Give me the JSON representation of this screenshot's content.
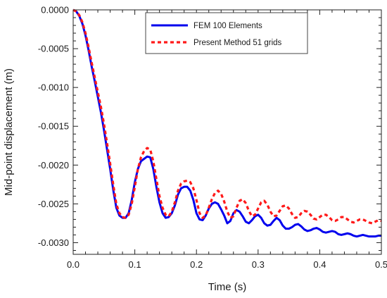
{
  "chart_data": {
    "type": "line",
    "title": "",
    "xlabel": "Time (s)",
    "ylabel": "Mid-point displacement (m)",
    "xlim": [
      0.0,
      0.5
    ],
    "ylim": [
      -0.00315,
      0.0
    ],
    "xticks": [
      0.0,
      0.1,
      0.2,
      0.3,
      0.4,
      0.5
    ],
    "xtick_labels": [
      "0.0",
      "0.1",
      "0.2",
      "0.3",
      "0.4",
      "0.5"
    ],
    "yticks": [
      0.0,
      -0.0005,
      -0.001,
      -0.0015,
      -0.002,
      -0.0025,
      -0.003
    ],
    "ytick_labels": [
      "0.0000",
      "-0.0005",
      "-0.0010",
      "-0.0015",
      "-0.0020",
      "-0.0025",
      "-0.0030"
    ],
    "grid": false,
    "legend_position": "top-center",
    "series": [
      {
        "name": "FEM 100 Elements",
        "color": "#0000ee",
        "style": "solid",
        "x": [
          0.0,
          0.005,
          0.01,
          0.015,
          0.02,
          0.025,
          0.03,
          0.035,
          0.04,
          0.045,
          0.05,
          0.055,
          0.06,
          0.065,
          0.07,
          0.075,
          0.08,
          0.085,
          0.09,
          0.095,
          0.1,
          0.105,
          0.11,
          0.115,
          0.12,
          0.125,
          0.13,
          0.135,
          0.14,
          0.145,
          0.15,
          0.155,
          0.16,
          0.165,
          0.17,
          0.175,
          0.18,
          0.185,
          0.19,
          0.195,
          0.2,
          0.205,
          0.21,
          0.215,
          0.22,
          0.225,
          0.23,
          0.235,
          0.24,
          0.245,
          0.25,
          0.255,
          0.26,
          0.265,
          0.27,
          0.275,
          0.28,
          0.285,
          0.29,
          0.295,
          0.3,
          0.305,
          0.31,
          0.315,
          0.32,
          0.325,
          0.33,
          0.335,
          0.34,
          0.345,
          0.35,
          0.355,
          0.36,
          0.365,
          0.37,
          0.375,
          0.38,
          0.385,
          0.39,
          0.395,
          0.4,
          0.405,
          0.41,
          0.415,
          0.42,
          0.425,
          0.43,
          0.435,
          0.44,
          0.445,
          0.45,
          0.455,
          0.46,
          0.465,
          0.47,
          0.475,
          0.48,
          0.485,
          0.49,
          0.495,
          0.5
        ],
        "y": [
          0.0,
          -2e-05,
          -8e-05,
          -0.00018,
          -0.00033,
          -0.00052,
          -0.00073,
          -0.00092,
          -0.00112,
          -0.00132,
          -0.00155,
          -0.0018,
          -0.00205,
          -0.00232,
          -0.00255,
          -0.00265,
          -0.00268,
          -0.00268,
          -0.00262,
          -0.00245,
          -0.00222,
          -0.00205,
          -0.00195,
          -0.00192,
          -0.00189,
          -0.0019,
          -0.00205,
          -0.00228,
          -0.00248,
          -0.00262,
          -0.00268,
          -0.00267,
          -0.00262,
          -0.00252,
          -0.00238,
          -0.0023,
          -0.00228,
          -0.00228,
          -0.00233,
          -0.00245,
          -0.00262,
          -0.0027,
          -0.00271,
          -0.00265,
          -0.00256,
          -0.0025,
          -0.00248,
          -0.0025,
          -0.00257,
          -0.00265,
          -0.00275,
          -0.00272,
          -0.00262,
          -0.00258,
          -0.0026,
          -0.00266,
          -0.00273,
          -0.00275,
          -0.00271,
          -0.00266,
          -0.00264,
          -0.00268,
          -0.00275,
          -0.00278,
          -0.00277,
          -0.00272,
          -0.00268,
          -0.00271,
          -0.00278,
          -0.00282,
          -0.00282,
          -0.0028,
          -0.00277,
          -0.00276,
          -0.00279,
          -0.00283,
          -0.00285,
          -0.00284,
          -0.00282,
          -0.00281,
          -0.00283,
          -0.00286,
          -0.00287,
          -0.00286,
          -0.00285,
          -0.00286,
          -0.00289,
          -0.0029,
          -0.00289,
          -0.00288,
          -0.00289,
          -0.00291,
          -0.00292,
          -0.00291,
          -0.0029,
          -0.00291,
          -0.00292,
          -0.00292,
          -0.00292,
          -0.00291,
          -0.00291
        ]
      },
      {
        "name": "Present Method 51 grids",
        "color": "#ff1a1a",
        "style": "dashed",
        "x": [
          0.0,
          0.005,
          0.01,
          0.015,
          0.02,
          0.025,
          0.03,
          0.035,
          0.04,
          0.045,
          0.05,
          0.055,
          0.06,
          0.065,
          0.07,
          0.075,
          0.08,
          0.085,
          0.09,
          0.095,
          0.1,
          0.105,
          0.11,
          0.115,
          0.12,
          0.125,
          0.13,
          0.135,
          0.14,
          0.145,
          0.15,
          0.155,
          0.16,
          0.165,
          0.17,
          0.175,
          0.18,
          0.185,
          0.19,
          0.195,
          0.2,
          0.205,
          0.21,
          0.215,
          0.22,
          0.225,
          0.23,
          0.235,
          0.24,
          0.245,
          0.25,
          0.255,
          0.26,
          0.265,
          0.27,
          0.275,
          0.28,
          0.285,
          0.29,
          0.295,
          0.3,
          0.305,
          0.31,
          0.315,
          0.32,
          0.325,
          0.33,
          0.335,
          0.34,
          0.345,
          0.35,
          0.355,
          0.36,
          0.365,
          0.37,
          0.375,
          0.38,
          0.385,
          0.39,
          0.395,
          0.4,
          0.405,
          0.41,
          0.415,
          0.42,
          0.425,
          0.43,
          0.435,
          0.44,
          0.445,
          0.45,
          0.455,
          0.46,
          0.465,
          0.47,
          0.475,
          0.48,
          0.485,
          0.49,
          0.495,
          0.5
        ],
        "y": [
          0.0,
          -2e-05,
          -7e-05,
          -0.00016,
          -0.0003,
          -0.00048,
          -0.00068,
          -0.00087,
          -0.00106,
          -0.00125,
          -0.00147,
          -0.00172,
          -0.00198,
          -0.00225,
          -0.0025,
          -0.00262,
          -0.00267,
          -0.00268,
          -0.00264,
          -0.0025,
          -0.00228,
          -0.00205,
          -0.0019,
          -0.00182,
          -0.00178,
          -0.0018,
          -0.00195,
          -0.00218,
          -0.0024,
          -0.00255,
          -0.00264,
          -0.00266,
          -0.0026,
          -0.00248,
          -0.00233,
          -0.00224,
          -0.00221,
          -0.0022,
          -0.00222,
          -0.0023,
          -0.00245,
          -0.00262,
          -0.00268,
          -0.00265,
          -0.00255,
          -0.00244,
          -0.00236,
          -0.00233,
          -0.00237,
          -0.00247,
          -0.0026,
          -0.00268,
          -0.00266,
          -0.00255,
          -0.00246,
          -0.00244,
          -0.00249,
          -0.00259,
          -0.00266,
          -0.00264,
          -0.00256,
          -0.00248,
          -0.00246,
          -0.00251,
          -0.0026,
          -0.00266,
          -0.00265,
          -0.00259,
          -0.00253,
          -0.00252,
          -0.00256,
          -0.00263,
          -0.00268,
          -0.00267,
          -0.00262,
          -0.00259,
          -0.0026,
          -0.00264,
          -0.00269,
          -0.0027,
          -0.00267,
          -0.00264,
          -0.00264,
          -0.00267,
          -0.00271,
          -0.00272,
          -0.0027,
          -0.00267,
          -0.00267,
          -0.0027,
          -0.00273,
          -0.00274,
          -0.00272,
          -0.0027,
          -0.0027,
          -0.00272,
          -0.00274,
          -0.00275,
          -0.00273,
          -0.00271,
          -0.00272
        ]
      }
    ]
  }
}
